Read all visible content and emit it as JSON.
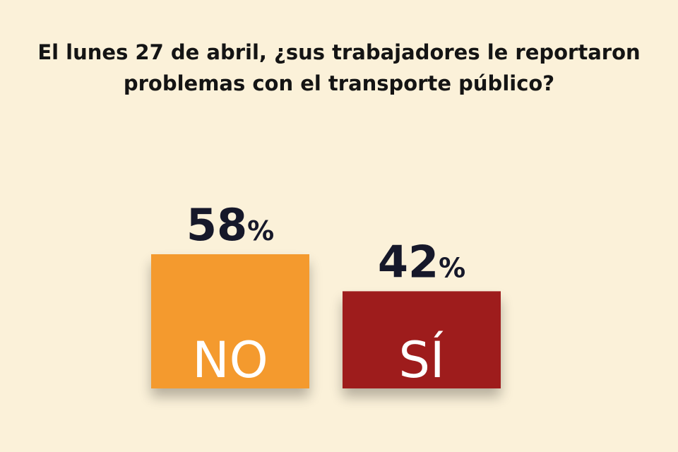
{
  "chart_data": {
    "type": "bar",
    "title_lines": [
      "El lunes 27 de abril, ¿sus trabajadores le reportaron",
      "problemas con el transporte público?"
    ],
    "categories": [
      "NO",
      "SÍ"
    ],
    "values": [
      58,
      42
    ],
    "value_labels": [
      "58",
      "42"
    ],
    "value_suffix": "%",
    "colors": [
      "#f49a2e",
      "#9e1a1f"
    ],
    "xlabel": "",
    "ylabel": ""
  },
  "background_color": "#fbf1d9"
}
